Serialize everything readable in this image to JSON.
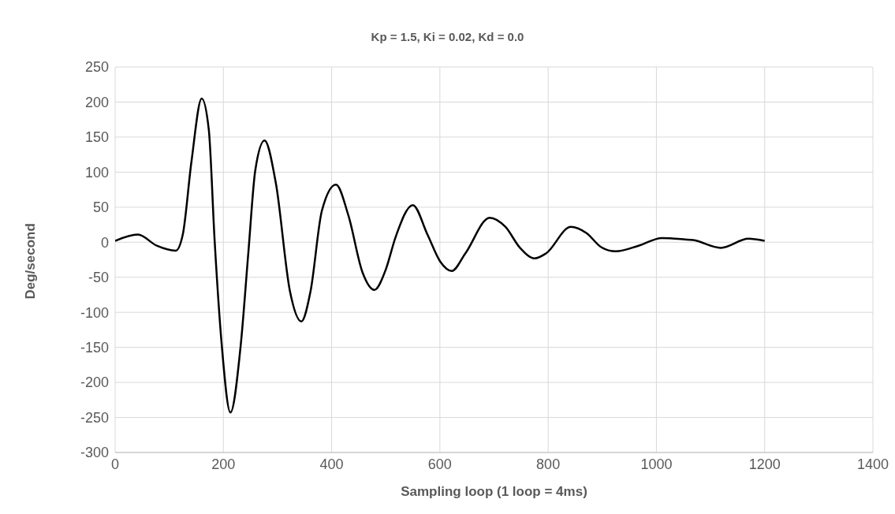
{
  "chart_data": {
    "type": "line",
    "title": "Kp = 1.5, Ki = 0.02, Kd = 0.0",
    "xlabel": "Sampling loop (1 loop = 4ms)",
    "ylabel": "Deg/second",
    "x": [
      0,
      42,
      77,
      112,
      125,
      141,
      160,
      173,
      184,
      197,
      213,
      232,
      246,
      259,
      276,
      297,
      323,
      344,
      361,
      382,
      408,
      431,
      457,
      479,
      500,
      518,
      550,
      577,
      601,
      622,
      647,
      692,
      721,
      748,
      775,
      796,
      842,
      871,
      898,
      925,
      967,
      1010,
      1053,
      1068,
      1119,
      1170,
      1200
    ],
    "series": [
      {
        "color": "#000000",
        "values": [
          2,
          11,
          -5,
          -12,
          11,
          115,
          205,
          161,
          0,
          -147,
          -243,
          -147,
          -16,
          103,
          145,
          84,
          -70,
          -113,
          -70,
          45,
          82,
          38,
          -43,
          -68,
          -39,
          7,
          53,
          11,
          -28,
          -41,
          -16,
          35,
          22,
          -8,
          -23,
          -16,
          22,
          13,
          -7,
          -13,
          -5,
          6,
          4,
          3,
          -8,
          5,
          2
        ]
      }
    ],
    "xlim": [
      0,
      1400
    ],
    "xticks": [
      0,
      200,
      400,
      600,
      800,
      1000,
      1200,
      1400
    ],
    "ylim": [
      -300,
      250
    ],
    "yticks": [
      -300,
      -250,
      -200,
      -150,
      -100,
      -50,
      0,
      50,
      100,
      150,
      200,
      250
    ],
    "grid": true
  }
}
